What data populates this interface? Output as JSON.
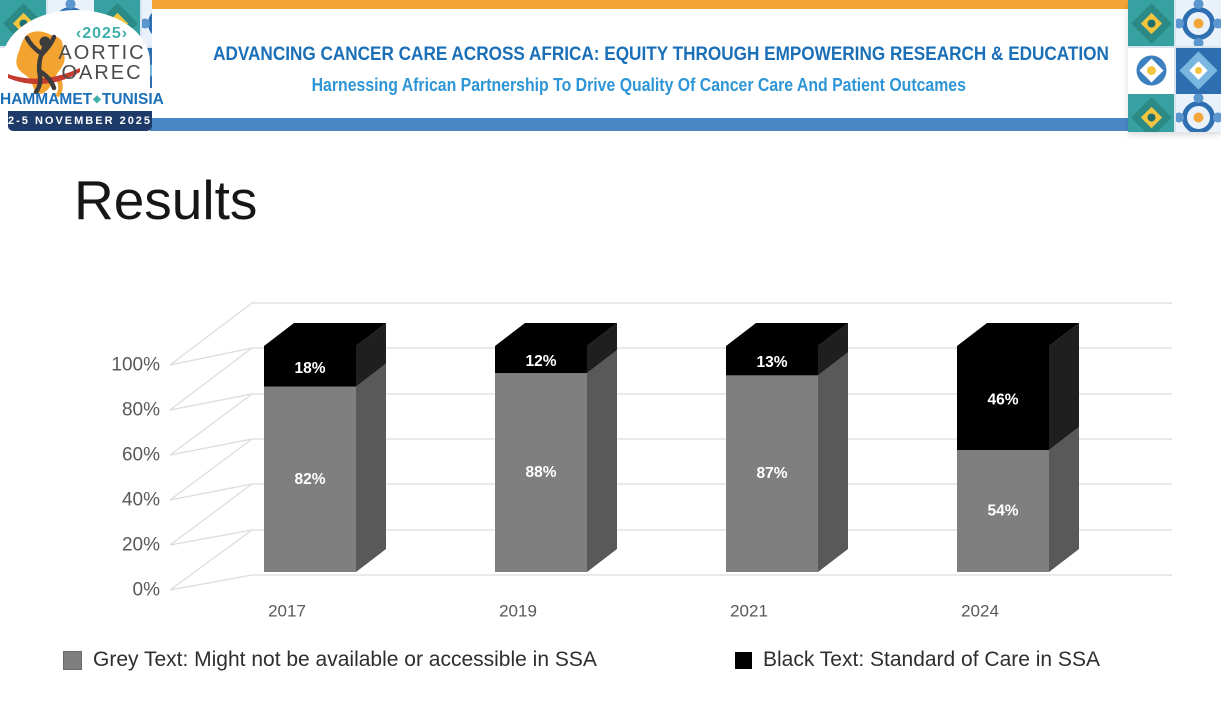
{
  "header": {
    "title_line1": "ADVANCING CANCER CARE ACROSS AFRICA: EQUITY THROUGH EMPOWERING RESEARCH & EDUCATION",
    "title_line2": "Harnessing African Partnership To Drive Quality Of Cancer Care And Patient Outcames",
    "colors": {
      "accent_bar_top": "#F4A434",
      "accent_bar_bottom": "#4A86C6",
      "line1_blue": "#1A6FB7",
      "line2_blue": "#2E96D6"
    }
  },
  "logo": {
    "year": "‹2025›",
    "org_line1": "AORTIC",
    "org_line2": "OAREC",
    "location_left": "HAMMAMET",
    "location_separator": "◆",
    "location_right": "TUNISIA",
    "dates": "2-5 NOVEMBER 2025",
    "colors": {
      "year_teal": "#3FAFAA",
      "location_blue": "#1A6FB7",
      "date_navy": "#1E3A68",
      "africa_orange": "#F3A32F",
      "swoosh_red": "#C43B30",
      "figure_dark": "#3d3d3d"
    }
  },
  "slide": {
    "title": "Results"
  },
  "chart_data": {
    "type": "bar",
    "subtype": "3d-stacked-column-100pct",
    "title": "",
    "categories": [
      "2017",
      "2019",
      "2021",
      "2024"
    ],
    "series": [
      {
        "name": "Grey Text: Might not be available or accessible in SSA",
        "color": "#7F7F7F",
        "side_color": "#595959",
        "values": [
          82,
          88,
          87,
          54
        ],
        "labels": [
          "82%",
          "88%",
          "87%",
          "54%"
        ]
      },
      {
        "name": "Black Text: Standard of Care in SSA",
        "color": "#000000",
        "side_color": "#1F1F1F",
        "values": [
          18,
          12,
          13,
          46
        ],
        "labels": [
          "18%",
          "12%",
          "13%",
          "46%"
        ]
      }
    ],
    "y_axis": {
      "min": 0,
      "max": 100,
      "step": 20,
      "ticks": [
        "0%",
        "20%",
        "40%",
        "60%",
        "80%",
        "100%"
      ]
    },
    "grid": true,
    "gridline_color": "#DCDCDC",
    "axis_label_color": "#595959",
    "data_label_color": "#FFFFFF",
    "legend_position": "bottom"
  }
}
